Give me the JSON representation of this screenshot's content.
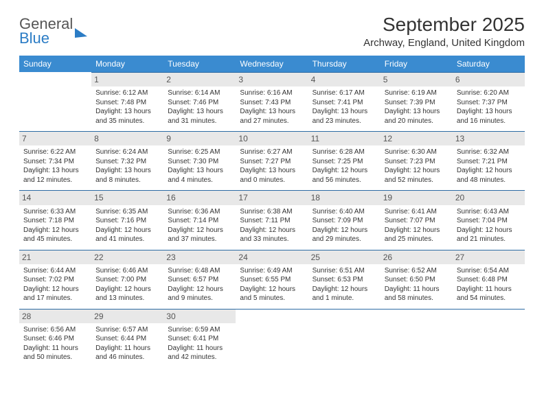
{
  "logo": {
    "word1": "General",
    "word2": "Blue"
  },
  "title": "September 2025",
  "location": "Archway, England, United Kingdom",
  "colors": {
    "header_bg": "#3a8bd0",
    "header_text": "#ffffff",
    "daynum_bg": "#e8e8e8",
    "daynum_text": "#555555",
    "cell_border": "#2b6aa3",
    "body_text": "#333333",
    "logo_accent": "#2b7cc5"
  },
  "weekdays": [
    "Sunday",
    "Monday",
    "Tuesday",
    "Wednesday",
    "Thursday",
    "Friday",
    "Saturday"
  ],
  "start_offset": 1,
  "days_in_month": 30,
  "days": {
    "1": {
      "sunrise": "6:12 AM",
      "sunset": "7:48 PM",
      "daylight": "13 hours and 35 minutes."
    },
    "2": {
      "sunrise": "6:14 AM",
      "sunset": "7:46 PM",
      "daylight": "13 hours and 31 minutes."
    },
    "3": {
      "sunrise": "6:16 AM",
      "sunset": "7:43 PM",
      "daylight": "13 hours and 27 minutes."
    },
    "4": {
      "sunrise": "6:17 AM",
      "sunset": "7:41 PM",
      "daylight": "13 hours and 23 minutes."
    },
    "5": {
      "sunrise": "6:19 AM",
      "sunset": "7:39 PM",
      "daylight": "13 hours and 20 minutes."
    },
    "6": {
      "sunrise": "6:20 AM",
      "sunset": "7:37 PM",
      "daylight": "13 hours and 16 minutes."
    },
    "7": {
      "sunrise": "6:22 AM",
      "sunset": "7:34 PM",
      "daylight": "13 hours and 12 minutes."
    },
    "8": {
      "sunrise": "6:24 AM",
      "sunset": "7:32 PM",
      "daylight": "13 hours and 8 minutes."
    },
    "9": {
      "sunrise": "6:25 AM",
      "sunset": "7:30 PM",
      "daylight": "13 hours and 4 minutes."
    },
    "10": {
      "sunrise": "6:27 AM",
      "sunset": "7:27 PM",
      "daylight": "13 hours and 0 minutes."
    },
    "11": {
      "sunrise": "6:28 AM",
      "sunset": "7:25 PM",
      "daylight": "12 hours and 56 minutes."
    },
    "12": {
      "sunrise": "6:30 AM",
      "sunset": "7:23 PM",
      "daylight": "12 hours and 52 minutes."
    },
    "13": {
      "sunrise": "6:32 AM",
      "sunset": "7:21 PM",
      "daylight": "12 hours and 48 minutes."
    },
    "14": {
      "sunrise": "6:33 AM",
      "sunset": "7:18 PM",
      "daylight": "12 hours and 45 minutes."
    },
    "15": {
      "sunrise": "6:35 AM",
      "sunset": "7:16 PM",
      "daylight": "12 hours and 41 minutes."
    },
    "16": {
      "sunrise": "6:36 AM",
      "sunset": "7:14 PM",
      "daylight": "12 hours and 37 minutes."
    },
    "17": {
      "sunrise": "6:38 AM",
      "sunset": "7:11 PM",
      "daylight": "12 hours and 33 minutes."
    },
    "18": {
      "sunrise": "6:40 AM",
      "sunset": "7:09 PM",
      "daylight": "12 hours and 29 minutes."
    },
    "19": {
      "sunrise": "6:41 AM",
      "sunset": "7:07 PM",
      "daylight": "12 hours and 25 minutes."
    },
    "20": {
      "sunrise": "6:43 AM",
      "sunset": "7:04 PM",
      "daylight": "12 hours and 21 minutes."
    },
    "21": {
      "sunrise": "6:44 AM",
      "sunset": "7:02 PM",
      "daylight": "12 hours and 17 minutes."
    },
    "22": {
      "sunrise": "6:46 AM",
      "sunset": "7:00 PM",
      "daylight": "12 hours and 13 minutes."
    },
    "23": {
      "sunrise": "6:48 AM",
      "sunset": "6:57 PM",
      "daylight": "12 hours and 9 minutes."
    },
    "24": {
      "sunrise": "6:49 AM",
      "sunset": "6:55 PM",
      "daylight": "12 hours and 5 minutes."
    },
    "25": {
      "sunrise": "6:51 AM",
      "sunset": "6:53 PM",
      "daylight": "12 hours and 1 minute."
    },
    "26": {
      "sunrise": "6:52 AM",
      "sunset": "6:50 PM",
      "daylight": "11 hours and 58 minutes."
    },
    "27": {
      "sunrise": "6:54 AM",
      "sunset": "6:48 PM",
      "daylight": "11 hours and 54 minutes."
    },
    "28": {
      "sunrise": "6:56 AM",
      "sunset": "6:46 PM",
      "daylight": "11 hours and 50 minutes."
    },
    "29": {
      "sunrise": "6:57 AM",
      "sunset": "6:44 PM",
      "daylight": "11 hours and 46 minutes."
    },
    "30": {
      "sunrise": "6:59 AM",
      "sunset": "6:41 PM",
      "daylight": "11 hours and 42 minutes."
    }
  },
  "labels": {
    "sunrise_prefix": "Sunrise: ",
    "sunset_prefix": "Sunset: ",
    "daylight_prefix": "Daylight: "
  }
}
